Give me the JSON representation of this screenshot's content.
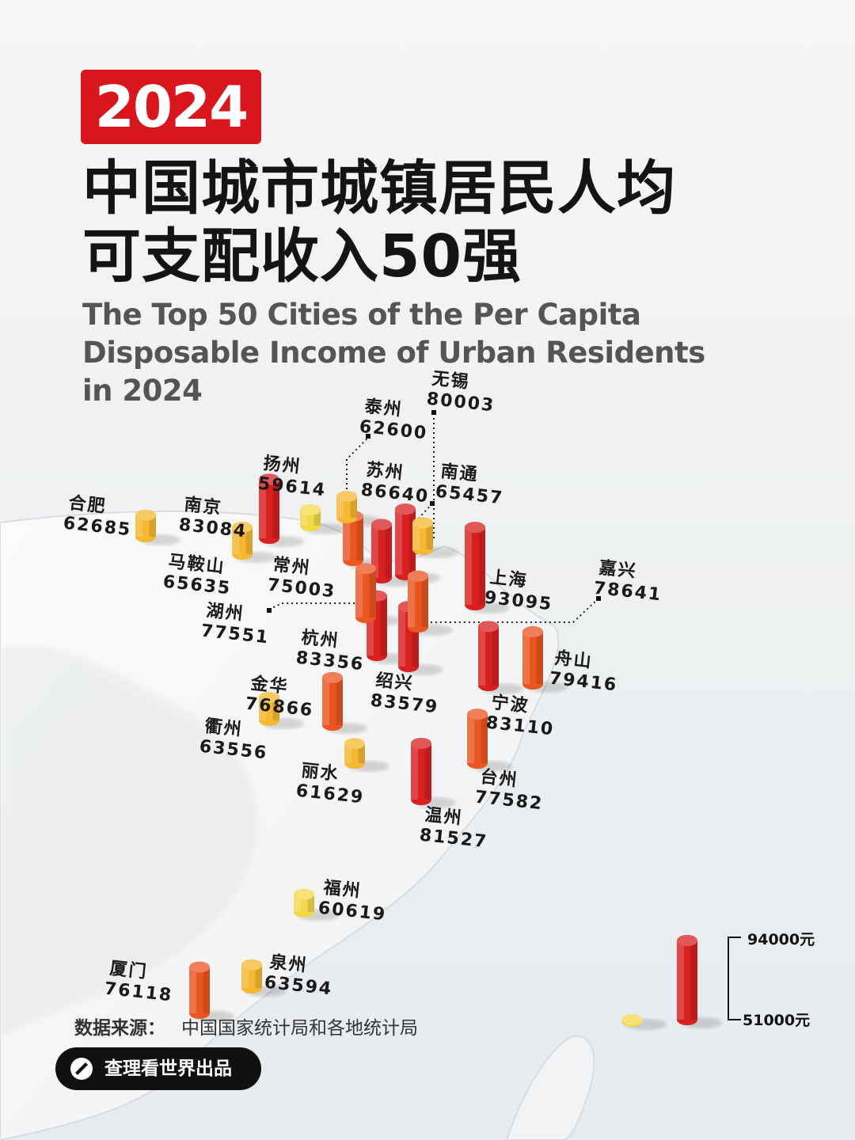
{
  "header": {
    "year": "2024",
    "title_cn_line1": "中国城市城镇居民人均",
    "title_cn_line2": "可支配收入50强",
    "title_en_line1": "The Top 50 Cities of the Per Capita",
    "title_en_line2": "Disposable Income of Urban Residents",
    "title_en_line3": "in 2024"
  },
  "footer": {
    "source_label": "数据来源：",
    "source_value": "中国国家统计局和各地统计局",
    "brand": "查理看世界出品"
  },
  "legend": {
    "max_label": "94000元",
    "min_label": "51000元",
    "max_value": 94000,
    "min_value": 51000
  },
  "colors": {
    "accent": "#d7171c",
    "high": "#d92020",
    "mid": "#ea5520",
    "low": "#f5b830",
    "min": "#f3d84a"
  },
  "chart_data": {
    "type": "3d-bar-map",
    "unit": "元",
    "cities": [
      {
        "name": "上海",
        "value": 93095
      },
      {
        "name": "苏州",
        "value": 86640
      },
      {
        "name": "绍兴",
        "value": 83579
      },
      {
        "name": "杭州",
        "value": 83356
      },
      {
        "name": "宁波",
        "value": 83110
      },
      {
        "name": "南京",
        "value": 83084
      },
      {
        "name": "温州",
        "value": 81527
      },
      {
        "name": "无锡",
        "value": 80003
      },
      {
        "name": "舟山",
        "value": 79416
      },
      {
        "name": "嘉兴",
        "value": 78641
      },
      {
        "name": "台州",
        "value": 77582
      },
      {
        "name": "湖州",
        "value": 77551
      },
      {
        "name": "金华",
        "value": 76866
      },
      {
        "name": "厦门",
        "value": 76118
      },
      {
        "name": "常州",
        "value": 75003
      },
      {
        "name": "马鞍山",
        "value": 65635
      },
      {
        "name": "南通",
        "value": 65457
      },
      {
        "name": "泉州",
        "value": 63594
      },
      {
        "name": "衢州",
        "value": 63556
      },
      {
        "name": "合肥",
        "value": 62685
      },
      {
        "name": "泰州",
        "value": 62600
      },
      {
        "name": "丽水",
        "value": 61629
      },
      {
        "name": "福州",
        "value": 60619
      },
      {
        "name": "扬州",
        "value": 59614
      }
    ]
  }
}
